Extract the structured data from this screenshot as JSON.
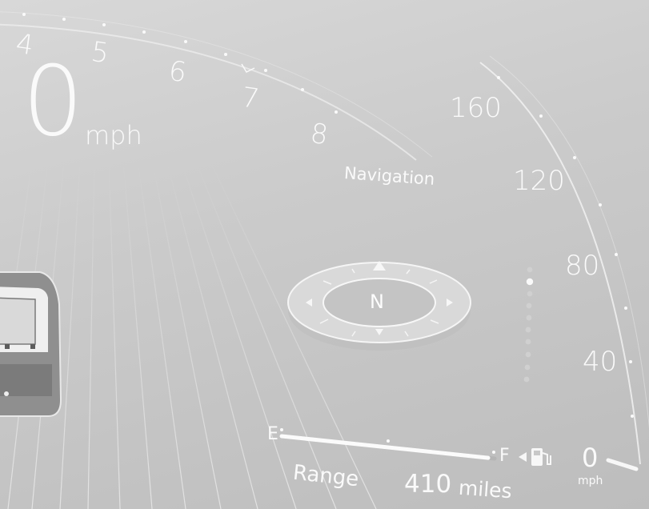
{
  "tachometer": {
    "ticks": [
      "4",
      "5",
      "6",
      "7",
      "8"
    ]
  },
  "speedometer": {
    "ticks": [
      "160",
      "120",
      "80",
      "40"
    ],
    "needle_value": "0",
    "needle_unit": "mph"
  },
  "digital_speed": {
    "value": "0",
    "unit": "mph"
  },
  "navigation": {
    "label": "Navigation",
    "compass_heading": "N"
  },
  "fuel": {
    "empty_label": "E",
    "full_label": "F",
    "level": 0.97,
    "icon": "fuel-pump-icon"
  },
  "range": {
    "label": "Range",
    "value": "410",
    "unit": "miles"
  },
  "colors": {
    "text": "#fafafa",
    "background": "#c8c8c8"
  }
}
